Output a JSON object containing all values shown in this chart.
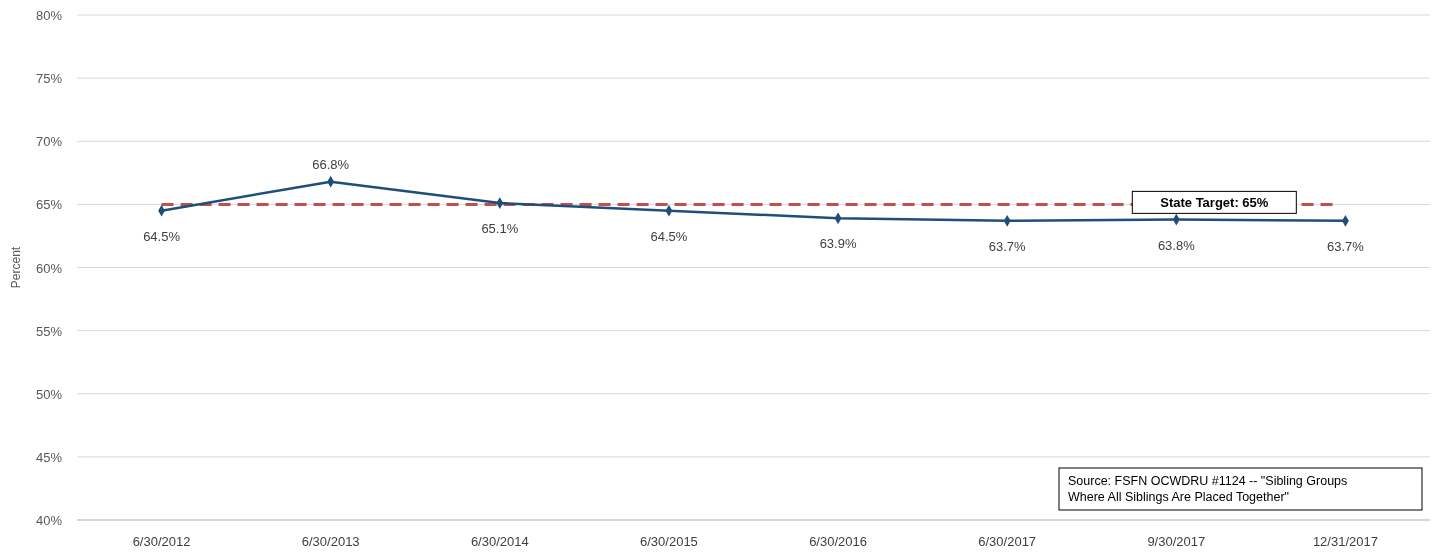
{
  "chart_data": {
    "type": "line",
    "ylabel": "Percent",
    "categories": [
      "6/30/2012",
      "6/30/2013",
      "6/30/2014",
      "6/30/2015",
      "6/30/2016",
      "6/30/2017",
      "9/30/2017",
      "12/31/2017"
    ],
    "series": [
      {
        "color": "#1f4e79",
        "values": [
          64.5,
          66.8,
          65.1,
          64.5,
          63.9,
          63.7,
          63.8,
          63.7
        ],
        "value_labels": [
          "64.5%",
          "66.8%",
          "65.1%",
          "64.5%",
          "63.9%",
          "63.7%",
          "63.8%",
          "63.7%"
        ]
      }
    ],
    "ylim": [
      40,
      80
    ],
    "yticks": [
      {
        "value": 40,
        "label": "40%"
      },
      {
        "value": 45,
        "label": "45%"
      },
      {
        "value": 50,
        "label": "50%"
      },
      {
        "value": 55,
        "label": "55%"
      },
      {
        "value": 60,
        "label": "60%"
      },
      {
        "value": 65,
        "label": "65%"
      },
      {
        "value": 70,
        "label": "70%"
      },
      {
        "value": 75,
        "label": "75%"
      },
      {
        "value": 80,
        "label": "80%"
      }
    ],
    "grid": "y",
    "marker": "diamond",
    "line_style": "solid",
    "ref_lines": [
      {
        "axis": "y",
        "value": 65,
        "label": "State Target: 65%",
        "color": "#c0504d",
        "line_style": "dashed"
      }
    ],
    "annotations": [
      "Source: FSFN OCWDRU #1124 -- \"Sibling Groups Where All Siblings Are Placed Together\""
    ]
  }
}
